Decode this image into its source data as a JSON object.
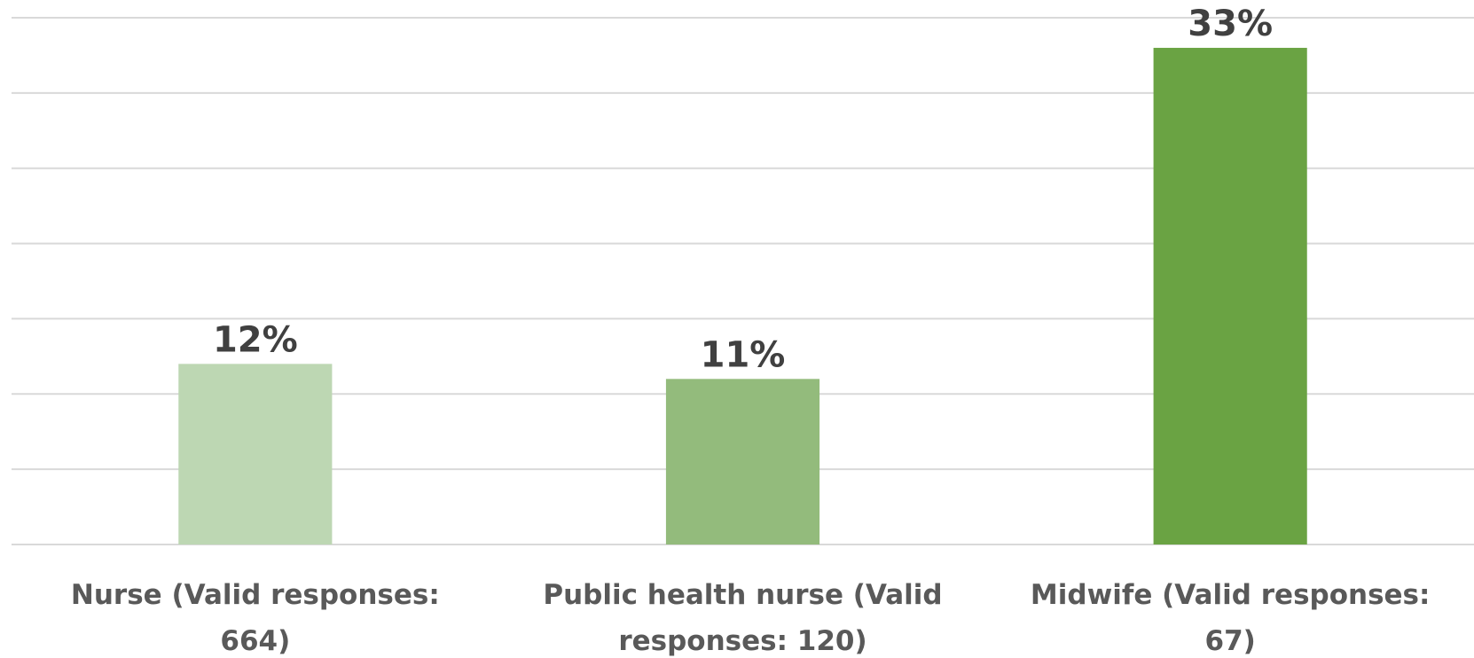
{
  "chart_data": {
    "type": "bar",
    "categories": [
      "Nurse (Valid responses: 664)",
      "Public health nurse (Valid responses: 120)",
      "Midwife (Valid responses: 67)"
    ],
    "values": [
      12,
      11,
      33
    ],
    "value_labels": [
      "12%",
      "11%",
      "33%"
    ],
    "colors": [
      "#bdd7b3",
      "#93bb7c",
      "#6aa343"
    ],
    "ylim": [
      0,
      35
    ],
    "yticks": [
      0,
      5,
      10,
      15,
      20,
      25,
      30,
      35
    ],
    "grid": true
  }
}
